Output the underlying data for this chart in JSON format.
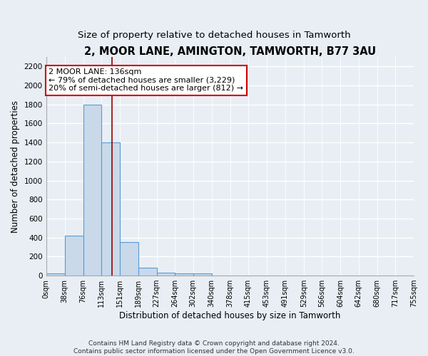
{
  "title": "2, MOOR LANE, AMINGTON, TAMWORTH, B77 3AU",
  "subtitle": "Size of property relative to detached houses in Tamworth",
  "xlabel": "Distribution of detached houses by size in Tamworth",
  "ylabel": "Number of detached properties",
  "bin_edges": [
    0,
    38,
    76,
    113,
    151,
    189,
    227,
    264,
    302,
    340,
    378,
    415,
    453,
    491,
    529,
    566,
    604,
    642,
    680,
    717,
    755
  ],
  "bin_heights": [
    20,
    420,
    1800,
    1400,
    350,
    80,
    30,
    20,
    20,
    0,
    0,
    0,
    0,
    0,
    0,
    0,
    0,
    0,
    0,
    0
  ],
  "bar_color": "#c9d9ea",
  "bar_edge_color": "#5b9bd5",
  "red_line_x": 136,
  "ylim": [
    0,
    2300
  ],
  "yticks": [
    0,
    200,
    400,
    600,
    800,
    1000,
    1200,
    1400,
    1600,
    1800,
    2000,
    2200
  ],
  "annotation_line1": "2 MOOR LANE: 136sqm",
  "annotation_line2": "← 79% of detached houses are smaller (3,229)",
  "annotation_line3": "20% of semi-detached houses are larger (812) →",
  "annotation_box_color": "#ffffff",
  "annotation_box_edge_color": "#cc0000",
  "footer_text": "Contains HM Land Registry data © Crown copyright and database right 2024.\nContains public sector information licensed under the Open Government Licence v3.0.",
  "background_color": "#e8eef4",
  "grid_color": "#ffffff",
  "title_fontsize": 10.5,
  "subtitle_fontsize": 9.5,
  "tick_label_fontsize": 7,
  "ylabel_fontsize": 8.5,
  "xlabel_fontsize": 8.5,
  "footer_fontsize": 6.5,
  "annotation_fontsize": 8
}
